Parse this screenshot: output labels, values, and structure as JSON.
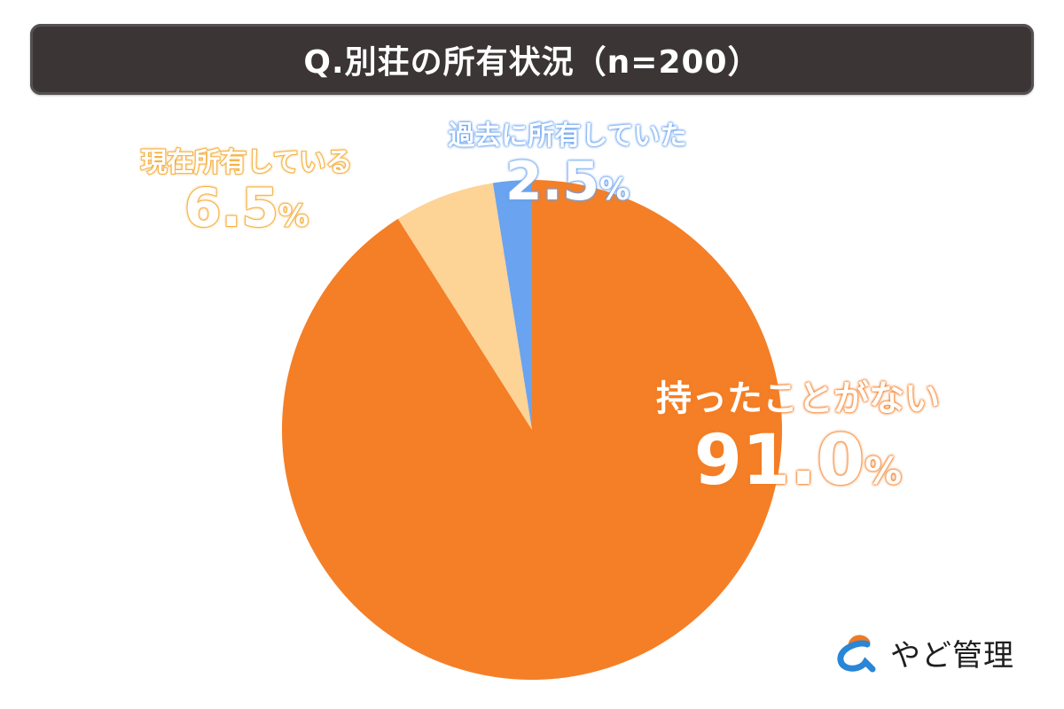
{
  "title": "Q.別荘の所有状況（n=200）",
  "chart_data": {
    "type": "pie",
    "title": "Q.別荘の所有状況（n=200）",
    "n": 200,
    "categories": [
      "持ったことがない",
      "現在所有している",
      "過去に所有していた"
    ],
    "values": [
      91.0,
      6.5,
      2.5
    ],
    "unit": "%",
    "colors": [
      "#f47f27",
      "#fdd396",
      "#6aa3ef"
    ],
    "start_angle_deg": 0,
    "direction": "clockwise",
    "legend": "none (direct labels)"
  },
  "labels": {
    "current": {
      "category": "現在所有している",
      "value": "6.5",
      "unit": "%"
    },
    "past": {
      "category": "過去に所有していた",
      "value": "2.5",
      "unit": "%"
    },
    "never": {
      "category": "持ったことがない",
      "value": "91.0",
      "unit": "%"
    }
  },
  "logo": {
    "text": "やど管理",
    "icon": "ampersand-logo-icon"
  }
}
